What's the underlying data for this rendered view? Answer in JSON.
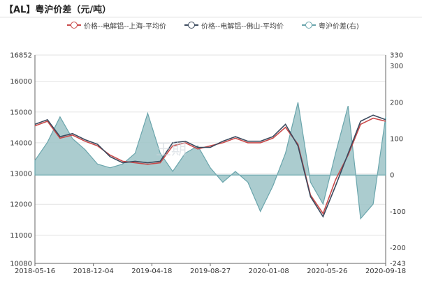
{
  "header": {
    "title": "【AL】粤沪价差（元/吨）"
  },
  "legend": [
    {
      "label": "价格--电解铝--上海-平均价",
      "color": "#c94a4a",
      "kind": "line"
    },
    {
      "label": "价格--电解铝--佛山-平均价",
      "color": "#3b4a5e",
      "kind": "line"
    },
    {
      "label": "粤沪价差(右)",
      "color": "#6aa5ac",
      "kind": "area"
    }
  ],
  "chart_data": {
    "type": "line",
    "title": "【AL】粤沪价差（元/吨）",
    "x_tick_labels": [
      "2018-05-16",
      "2018-12-04",
      "2019-04-18",
      "2019-08-27",
      "2020-01-08",
      "2020-05-26",
      "2020-09-18"
    ],
    "x": [
      "2018-05",
      "2018-06",
      "2018-07",
      "2018-08",
      "2018-09",
      "2018-10",
      "2018-11",
      "2018-12",
      "2019-01",
      "2019-02",
      "2019-03",
      "2019-04",
      "2019-05",
      "2019-06",
      "2019-07",
      "2019-08",
      "2019-09",
      "2019-10",
      "2019-11",
      "2019-12",
      "2020-01",
      "2020-02",
      "2020-03",
      "2020-04",
      "2020-05",
      "2020-06",
      "2020-07",
      "2020-08",
      "2020-09"
    ],
    "left_axis": {
      "min": 10080,
      "max": 16852,
      "tick_labels": [
        "10080",
        "11000",
        "12000",
        "13000",
        "14000",
        "15000",
        "16000",
        "16852"
      ]
    },
    "right_axis": {
      "min": -243,
      "max": 330,
      "tick_labels": [
        "-243",
        "-200",
        "-100",
        "0",
        "100",
        "200",
        "300",
        "330"
      ]
    },
    "grid": true,
    "legend_position": "top",
    "series": [
      {
        "name": "价格--电解铝--上海-平均价",
        "axis": "left",
        "color": "#c94a4a",
        "values": [
          14550,
          14700,
          14150,
          14250,
          14050,
          13900,
          13600,
          13400,
          13350,
          13300,
          13350,
          13900,
          14000,
          13800,
          13900,
          14000,
          14150,
          14000,
          14000,
          14150,
          14500,
          13950,
          12300,
          11700,
          12800,
          13600,
          14600,
          14800,
          14700
        ]
      },
      {
        "name": "价格--电解铝--佛山-平均价",
        "axis": "left",
        "color": "#3b4a5e",
        "values": [
          14600,
          14750,
          14200,
          14300,
          14100,
          13950,
          13550,
          13350,
          13400,
          13350,
          13400,
          14000,
          14050,
          13850,
          13850,
          14050,
          14200,
          14050,
          14050,
          14200,
          14600,
          13900,
          12250,
          11600,
          12600,
          13650,
          14700,
          14900,
          14750
        ]
      },
      {
        "name": "粤沪价差(右)",
        "axis": "right",
        "color": "#6aa5ac",
        "values": [
          40,
          90,
          160,
          100,
          70,
          30,
          20,
          30,
          60,
          170,
          60,
          10,
          60,
          80,
          20,
          -20,
          10,
          -20,
          -100,
          -30,
          60,
          200,
          -20,
          -80,
          60,
          190,
          -120,
          -80,
          160
        ]
      }
    ]
  },
  "watermark": "王期"
}
